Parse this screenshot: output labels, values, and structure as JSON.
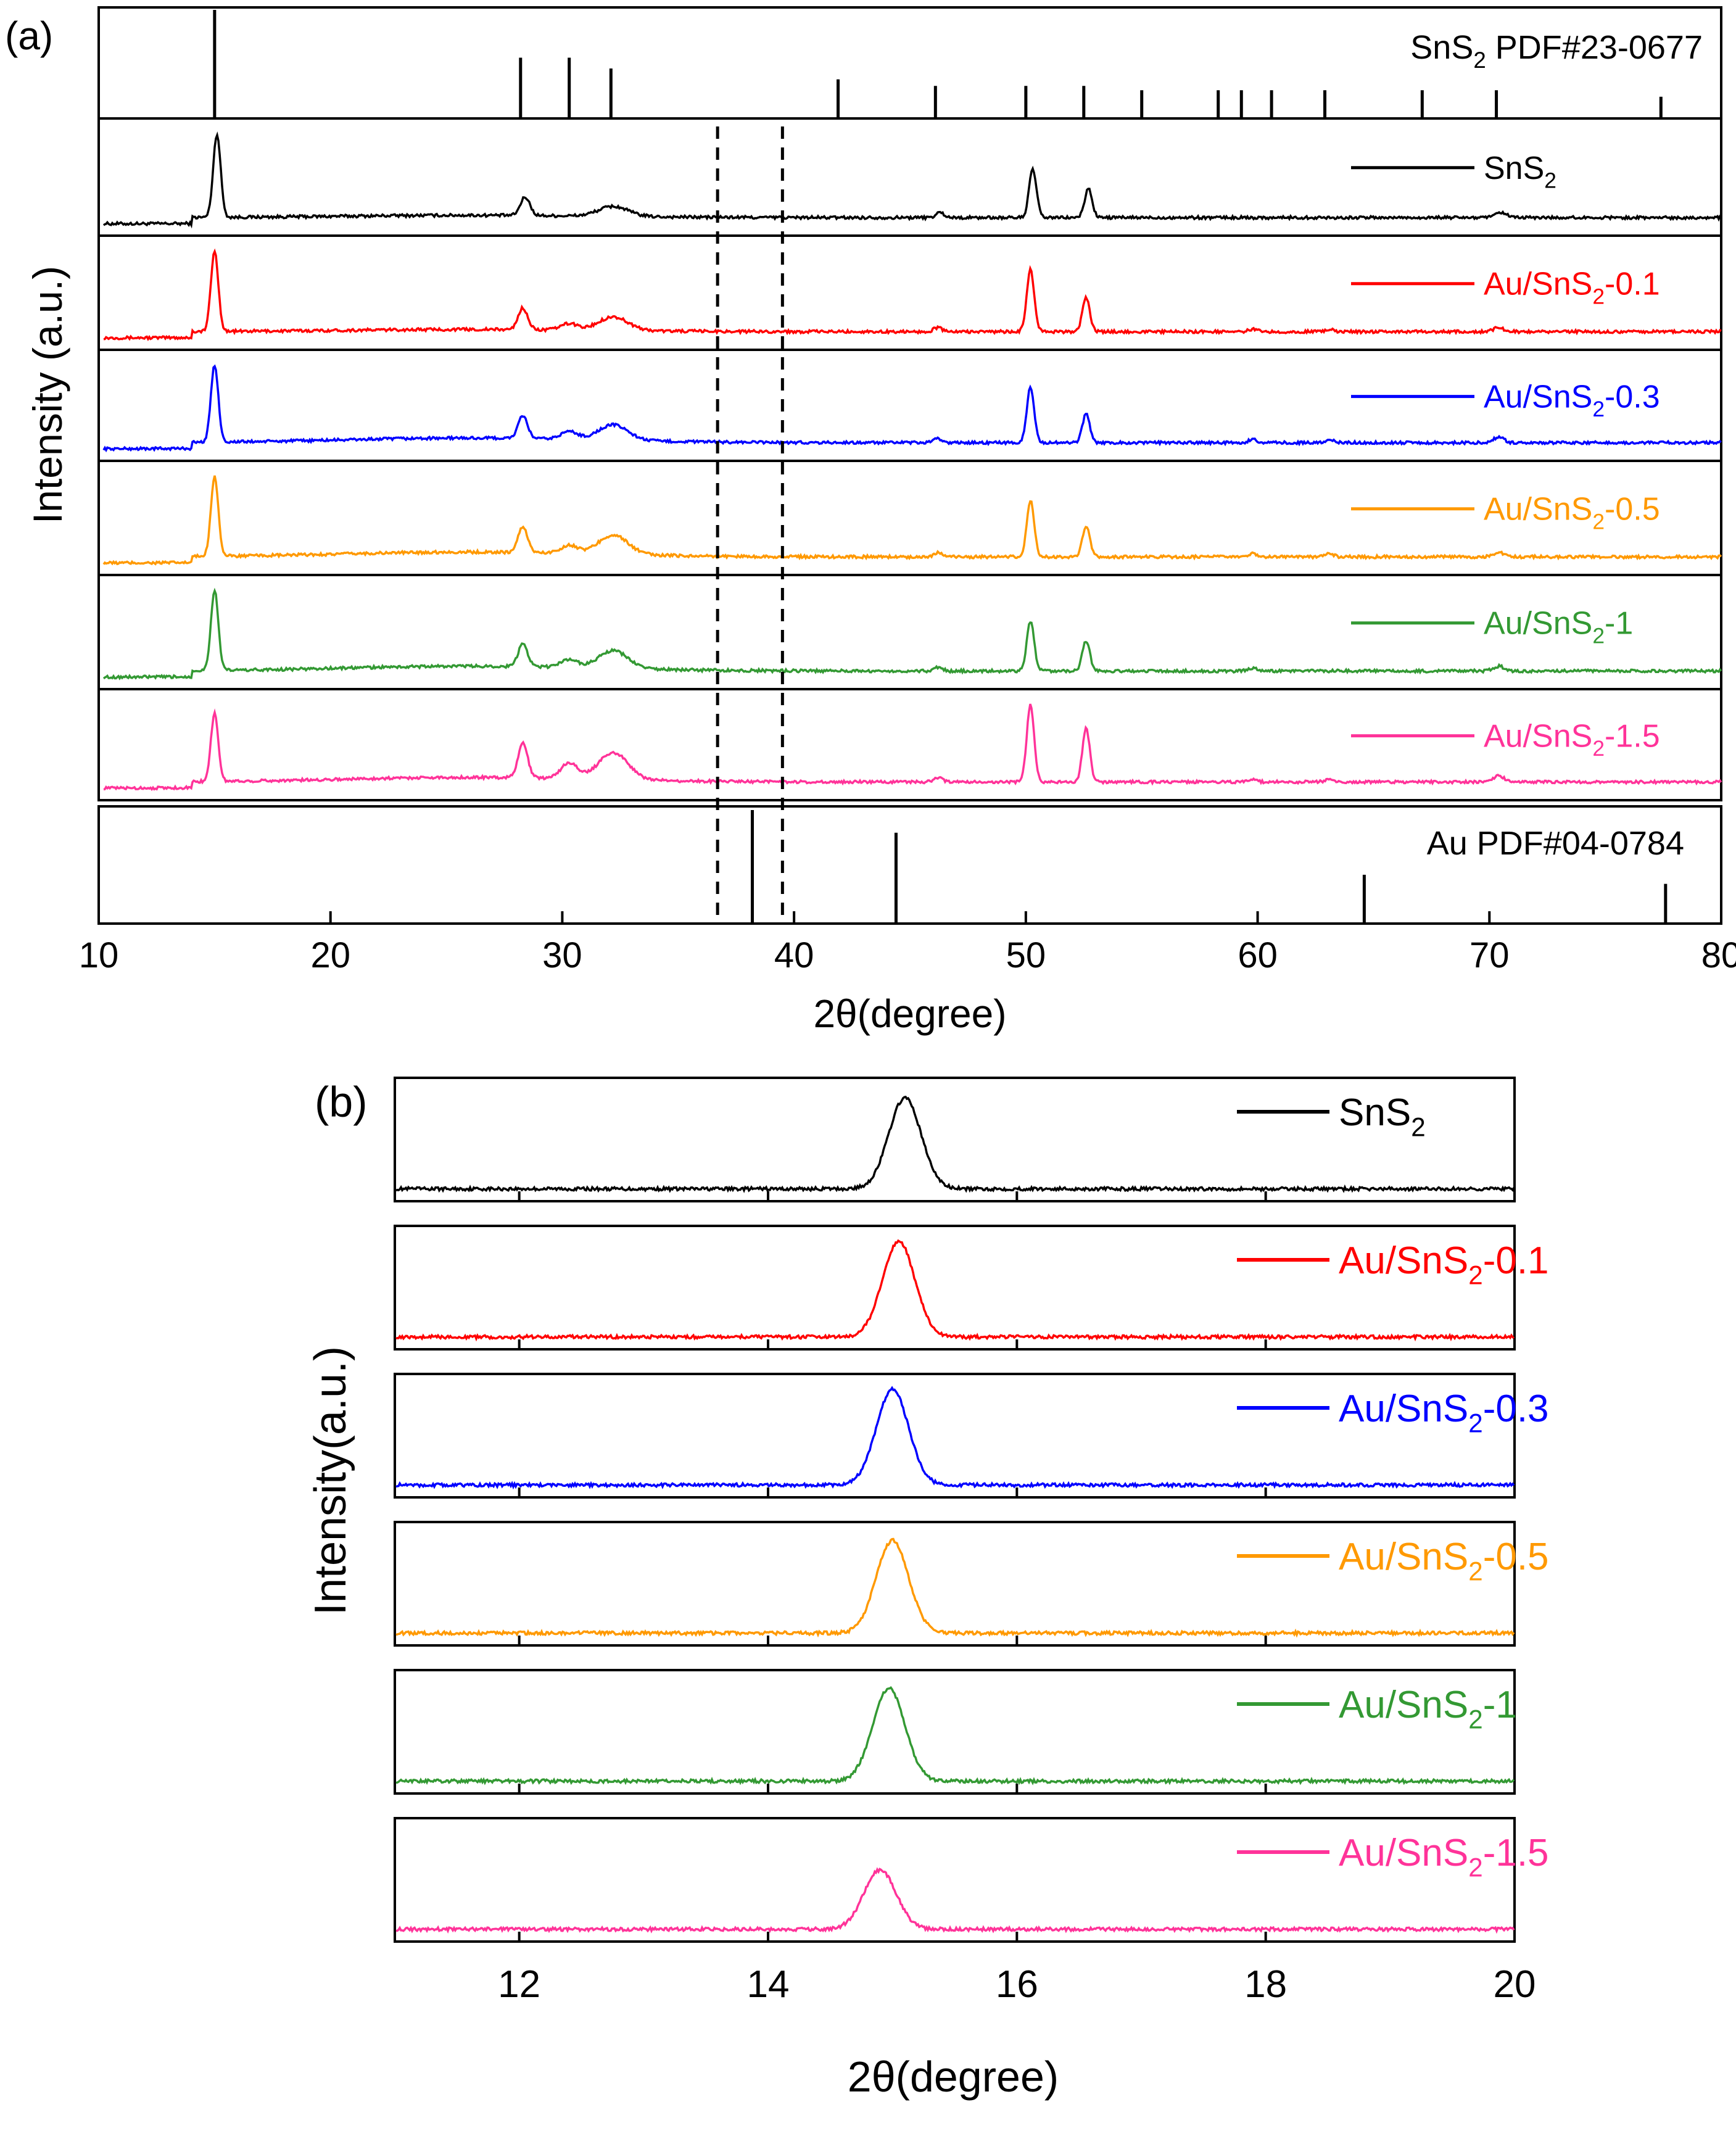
{
  "chart_data": [
    {
      "type": "line",
      "panel_label": "(a)",
      "title": "",
      "xlabel": "2θ(degree)",
      "ylabel": "Intensity (a.u.)",
      "xlim": [
        10,
        80
      ],
      "x_ticks": [
        10,
        20,
        30,
        40,
        50,
        60,
        70,
        80
      ],
      "grid": false,
      "dashed_reference_lines_x": [
        36.7,
        39.5
      ],
      "reference_patterns": [
        {
          "name": "SnS",
          "sub": "2",
          "suffix": " PDF#23-0677",
          "color": "#000000",
          "peaks": [
            {
              "x": 15.0,
              "rel": 1.0
            },
            {
              "x": 28.2,
              "rel": 0.56
            },
            {
              "x": 30.3,
              "rel": 0.56
            },
            {
              "x": 32.1,
              "rel": 0.46
            },
            {
              "x": 41.9,
              "rel": 0.36
            },
            {
              "x": 46.1,
              "rel": 0.3
            },
            {
              "x": 50.0,
              "rel": 0.3
            },
            {
              "x": 52.5,
              "rel": 0.3
            },
            {
              "x": 55.0,
              "rel": 0.26
            },
            {
              "x": 58.3,
              "rel": 0.26
            },
            {
              "x": 59.3,
              "rel": 0.26
            },
            {
              "x": 60.6,
              "rel": 0.26
            },
            {
              "x": 62.9,
              "rel": 0.26
            },
            {
              "x": 67.1,
              "rel": 0.26
            },
            {
              "x": 70.3,
              "rel": 0.26
            },
            {
              "x": 77.4,
              "rel": 0.2
            }
          ]
        },
        {
          "name": "Au PDF#04-0784",
          "color": "#000000",
          "peaks": [
            {
              "x": 38.2,
              "rel": 1.0
            },
            {
              "x": 44.4,
              "rel": 0.8
            },
            {
              "x": 64.6,
              "rel": 0.43
            },
            {
              "x": 77.6,
              "rel": 0.35
            }
          ]
        }
      ],
      "series": [
        {
          "name": "SnS",
          "sub": "2",
          "suffix": "",
          "color": "#000000",
          "peaks": [
            {
              "x": 15.1,
              "h": 1.0,
              "w": 0.35
            },
            {
              "x": 28.4,
              "h": 0.22,
              "w": 0.45
            },
            {
              "x": 32.2,
              "h": 0.12,
              "w": 1.4
            },
            {
              "x": 46.3,
              "h": 0.06,
              "w": 0.4
            },
            {
              "x": 50.3,
              "h": 0.58,
              "w": 0.35
            },
            {
              "x": 52.7,
              "h": 0.35,
              "w": 0.35
            },
            {
              "x": 70.5,
              "h": 0.06,
              "w": 0.5
            }
          ]
        },
        {
          "name": "Au/SnS",
          "sub": "2",
          "suffix": "-0.1",
          "color": "#ff0000",
          "peaks": [
            {
              "x": 15.0,
              "h": 1.0,
              "w": 0.35
            },
            {
              "x": 28.3,
              "h": 0.27,
              "w": 0.45
            },
            {
              "x": 30.3,
              "h": 0.08,
              "w": 0.8
            },
            {
              "x": 32.2,
              "h": 0.17,
              "w": 1.4
            },
            {
              "x": 46.2,
              "h": 0.05,
              "w": 0.4
            },
            {
              "x": 50.2,
              "h": 0.78,
              "w": 0.35
            },
            {
              "x": 52.6,
              "h": 0.42,
              "w": 0.35
            },
            {
              "x": 59.8,
              "h": 0.03,
              "w": 0.4
            },
            {
              "x": 63.1,
              "h": 0.03,
              "w": 0.4
            },
            {
              "x": 70.4,
              "h": 0.05,
              "w": 0.5
            }
          ]
        },
        {
          "name": "Au/SnS",
          "sub": "2",
          "suffix": "-0.3",
          "color": "#0000ff",
          "peaks": [
            {
              "x": 15.0,
              "h": 1.0,
              "w": 0.35
            },
            {
              "x": 28.3,
              "h": 0.29,
              "w": 0.45
            },
            {
              "x": 30.3,
              "h": 0.1,
              "w": 0.8
            },
            {
              "x": 32.2,
              "h": 0.2,
              "w": 1.4
            },
            {
              "x": 46.2,
              "h": 0.05,
              "w": 0.4
            },
            {
              "x": 50.2,
              "h": 0.72,
              "w": 0.35
            },
            {
              "x": 52.6,
              "h": 0.37,
              "w": 0.35
            },
            {
              "x": 59.8,
              "h": 0.04,
              "w": 0.4
            },
            {
              "x": 63.1,
              "h": 0.04,
              "w": 0.4
            },
            {
              "x": 70.4,
              "h": 0.07,
              "w": 0.5
            }
          ]
        },
        {
          "name": "Au/SnS",
          "sub": "2",
          "suffix": "-0.5",
          "color": "#ff9900",
          "peaks": [
            {
              "x": 15.0,
              "h": 1.0,
              "w": 0.35
            },
            {
              "x": 28.3,
              "h": 0.32,
              "w": 0.45
            },
            {
              "x": 30.3,
              "h": 0.1,
              "w": 0.8
            },
            {
              "x": 32.2,
              "h": 0.24,
              "w": 1.4
            },
            {
              "x": 46.2,
              "h": 0.05,
              "w": 0.4
            },
            {
              "x": 50.2,
              "h": 0.7,
              "w": 0.35
            },
            {
              "x": 52.6,
              "h": 0.38,
              "w": 0.35
            },
            {
              "x": 59.8,
              "h": 0.04,
              "w": 0.4
            },
            {
              "x": 63.1,
              "h": 0.04,
              "w": 0.4
            },
            {
              "x": 70.4,
              "h": 0.06,
              "w": 0.5
            }
          ]
        },
        {
          "name": "Au/SnS",
          "sub": "2",
          "suffix": "-1",
          "color": "#339933",
          "peaks": [
            {
              "x": 15.0,
              "h": 1.0,
              "w": 0.35
            },
            {
              "x": 28.3,
              "h": 0.28,
              "w": 0.45
            },
            {
              "x": 30.3,
              "h": 0.1,
              "w": 0.8
            },
            {
              "x": 32.2,
              "h": 0.22,
              "w": 1.4
            },
            {
              "x": 46.2,
              "h": 0.05,
              "w": 0.4
            },
            {
              "x": 50.2,
              "h": 0.62,
              "w": 0.35
            },
            {
              "x": 52.6,
              "h": 0.38,
              "w": 0.35
            },
            {
              "x": 59.8,
              "h": 0.04,
              "w": 0.4
            },
            {
              "x": 70.4,
              "h": 0.06,
              "w": 0.5
            }
          ]
        },
        {
          "name": "Au/SnS",
          "sub": "2",
          "suffix": "-1.5",
          "color": "#ff3399",
          "peaks": [
            {
              "x": 15.0,
              "h": 0.88,
              "w": 0.35
            },
            {
              "x": 28.3,
              "h": 0.45,
              "w": 0.45
            },
            {
              "x": 30.3,
              "h": 0.2,
              "w": 0.8
            },
            {
              "x": 32.2,
              "h": 0.35,
              "w": 1.4
            },
            {
              "x": 46.2,
              "h": 0.06,
              "w": 0.4
            },
            {
              "x": 50.2,
              "h": 1.0,
              "w": 0.35
            },
            {
              "x": 52.6,
              "h": 0.7,
              "w": 0.35
            },
            {
              "x": 59.8,
              "h": 0.04,
              "w": 0.4
            },
            {
              "x": 63.1,
              "h": 0.04,
              "w": 0.4
            },
            {
              "x": 70.4,
              "h": 0.08,
              "w": 0.5
            }
          ]
        }
      ]
    },
    {
      "type": "line",
      "panel_label": "(b)",
      "title": "",
      "xlabel": "2θ(degree)",
      "ylabel": "Intensity(a.u.)",
      "xlim": [
        11,
        20
      ],
      "x_ticks": [
        12,
        14,
        16,
        18,
        20
      ],
      "x_tick_labels": [
        "12",
        "14",
        "16",
        "18",
        "20"
      ],
      "grid": false,
      "series": [
        {
          "name": "SnS",
          "sub": "2",
          "suffix": "",
          "color": "#000000",
          "peak_x": 15.1,
          "peak_h": 0.95
        },
        {
          "name": "Au/SnS",
          "sub": "2",
          "suffix": "-0.1",
          "color": "#ff0000",
          "peak_x": 15.05,
          "peak_h": 1.0
        },
        {
          "name": "Au/SnS",
          "sub": "2",
          "suffix": "-0.3",
          "color": "#0000ff",
          "peak_x": 15.0,
          "peak_h": 1.0
        },
        {
          "name": "Au/SnS",
          "sub": "2",
          "suffix": "-0.5",
          "color": "#ff9900",
          "peak_x": 15.0,
          "peak_h": 0.97
        },
        {
          "name": "Au/SnS",
          "sub": "2",
          "suffix": "-1",
          "color": "#339933",
          "peak_x": 14.97,
          "peak_h": 0.97
        },
        {
          "name": "Au/SnS",
          "sub": "2",
          "suffix": "-1.5",
          "color": "#ff3399",
          "peak_x": 14.9,
          "peak_h": 0.62
        }
      ]
    }
  ]
}
